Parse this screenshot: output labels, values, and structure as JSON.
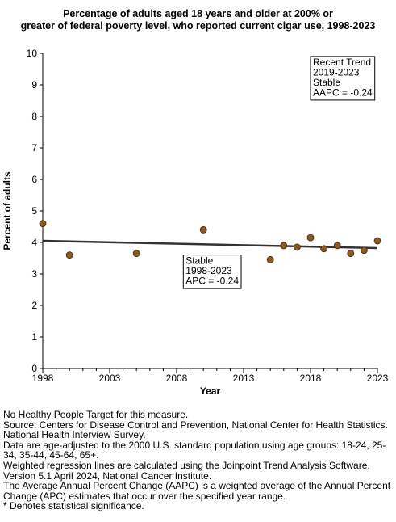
{
  "title_lines": [
    "Percentage of adults aged 18 years and older at 200% or",
    "greater of federal poverty level, who reported current cigar use, 1998-2023"
  ],
  "chart_data": {
    "type": "scatter",
    "xlabel": "Year",
    "ylabel": "Percent of adults",
    "xlim": [
      1998,
      2023
    ],
    "ylim": [
      0,
      10
    ],
    "x_ticks": [
      "1998",
      "2003",
      "2008",
      "2013",
      "2018",
      "2023"
    ],
    "y_ticks": [
      "0",
      "1",
      "2",
      "3",
      "4",
      "5",
      "6",
      "7",
      "8",
      "9",
      "10"
    ],
    "grid": false,
    "points": [
      {
        "x": 1998,
        "y": 4.6
      },
      {
        "x": 2000,
        "y": 3.6
      },
      {
        "x": 2005,
        "y": 3.65
      },
      {
        "x": 2010,
        "y": 4.4
      },
      {
        "x": 2015,
        "y": 3.45
      },
      {
        "x": 2016,
        "y": 3.9
      },
      {
        "x": 2017,
        "y": 3.85
      },
      {
        "x": 2018,
        "y": 4.15
      },
      {
        "x": 2019,
        "y": 3.8
      },
      {
        "x": 2020,
        "y": 3.9
      },
      {
        "x": 2021,
        "y": 3.65
      },
      {
        "x": 2022,
        "y": 3.75
      },
      {
        "x": 2023,
        "y": 4.05
      }
    ],
    "trend_line": {
      "x": [
        1998,
        2023
      ],
      "y": [
        4.05,
        3.82
      ]
    },
    "colors": {
      "points": "#8b5a1e",
      "point_stroke": "#3d2408",
      "trend": "#333333"
    },
    "annotations": [
      {
        "lines": [
          "Recent Trend",
          "2019-2023",
          "Stable",
          "AAPC = -0.24"
        ],
        "x": 2018.0,
        "y": 9.9
      },
      {
        "lines": [
          "Stable",
          "1998-2023",
          "APC = -0.24"
        ],
        "x": 2008.5,
        "y": 3.6
      }
    ]
  },
  "notes": [
    "No Healthy People Target for this measure.",
    "Source: Centers for Disease Control and Prevention, National Center for Health Statistics. National Health Interview Survey.",
    "Data are age-adjusted to the 2000 U.S. standard population using age groups: 18-24, 25-34, 35-44, 45-64, 65+.",
    "Weighted regression lines are calculated using the Joinpoint Trend Analysis Software, Version 5.1 April 2024, National Cancer Institute.",
    "The Average Annual Percent Change (AAPC) is a weighted average of the Annual Percent Change (APC) estimates that occur over the specified year range.",
    "* Denotes statistical significance."
  ]
}
